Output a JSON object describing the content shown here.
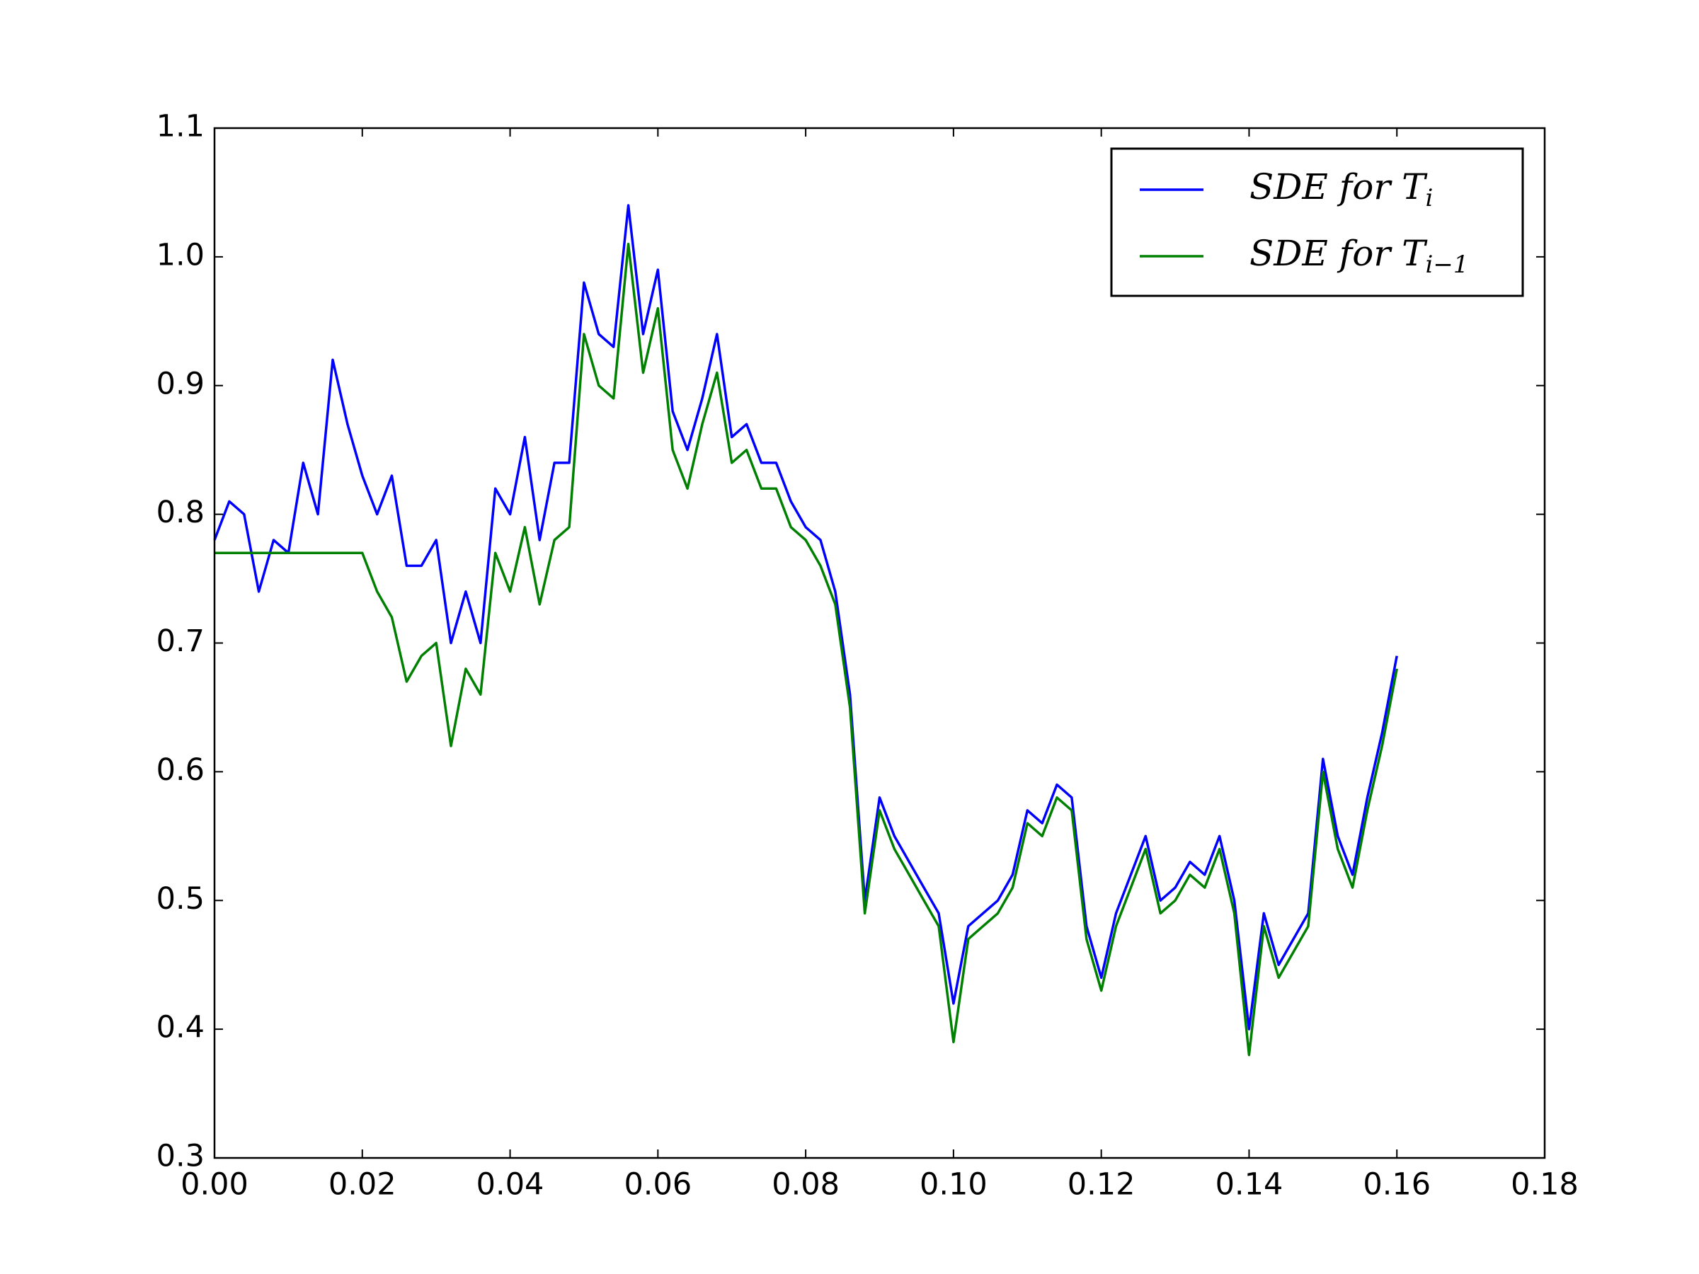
{
  "chart_data": {
    "type": "line",
    "x": [
      0,
      0.002,
      0.004,
      0.006,
      0.008,
      0.01,
      0.012,
      0.014,
      0.016,
      0.018,
      0.02,
      0.022,
      0.024,
      0.026,
      0.028,
      0.03,
      0.032,
      0.034,
      0.036,
      0.038,
      0.04,
      0.042,
      0.044,
      0.046,
      0.048,
      0.05,
      0.052,
      0.054,
      0.056,
      0.058,
      0.06,
      0.062,
      0.064,
      0.066,
      0.068,
      0.07,
      0.072,
      0.074,
      0.076,
      0.078,
      0.08,
      0.082,
      0.084,
      0.086,
      0.088,
      0.09,
      0.092,
      0.094,
      0.096,
      0.098,
      0.1,
      0.102,
      0.104,
      0.106,
      0.108,
      0.11,
      0.112,
      0.114,
      0.116,
      0.118,
      0.12,
      0.122,
      0.124,
      0.126,
      0.128,
      0.13,
      0.132,
      0.134,
      0.136,
      0.138,
      0.14,
      0.142,
      0.144,
      0.146,
      0.148,
      0.15,
      0.152,
      0.154,
      0.156,
      0.158,
      0.16
    ],
    "series": [
      {
        "name": "SDE for T_i",
        "color": "#0000ff",
        "values": [
          0.78,
          0.81,
          0.8,
          0.74,
          0.78,
          0.77,
          0.84,
          0.8,
          0.92,
          0.87,
          0.83,
          0.8,
          0.83,
          0.76,
          0.76,
          0.78,
          0.7,
          0.74,
          0.7,
          0.82,
          0.8,
          0.86,
          0.78,
          0.84,
          0.84,
          0.98,
          0.94,
          0.93,
          1.04,
          0.94,
          0.99,
          0.88,
          0.85,
          0.89,
          0.94,
          0.86,
          0.87,
          0.84,
          0.84,
          0.81,
          0.79,
          0.78,
          0.74,
          0.66,
          0.5,
          0.58,
          0.55,
          0.53,
          0.51,
          0.49,
          0.42,
          0.48,
          0.49,
          0.5,
          0.52,
          0.57,
          0.56,
          0.59,
          0.58,
          0.48,
          0.44,
          0.49,
          0.52,
          0.55,
          0.5,
          0.51,
          0.53,
          0.52,
          0.55,
          0.5,
          0.4,
          0.49,
          0.45,
          0.47,
          0.49,
          0.61,
          0.55,
          0.52,
          0.58,
          0.63,
          0.69
        ]
      },
      {
        "name": "SDE for T_i−1",
        "color": "#008000",
        "values": [
          0.77,
          0.77,
          0.77,
          0.77,
          0.77,
          0.77,
          0.77,
          0.77,
          0.77,
          0.77,
          0.77,
          0.74,
          0.72,
          0.67,
          0.69,
          0.7,
          0.62,
          0.68,
          0.66,
          0.77,
          0.74,
          0.79,
          0.73,
          0.78,
          0.79,
          0.94,
          0.9,
          0.89,
          1.01,
          0.91,
          0.96,
          0.85,
          0.82,
          0.87,
          0.91,
          0.84,
          0.85,
          0.82,
          0.82,
          0.79,
          0.78,
          0.76,
          0.73,
          0.65,
          0.49,
          0.57,
          0.54,
          0.52,
          0.5,
          0.48,
          0.39,
          0.47,
          0.48,
          0.49,
          0.51,
          0.56,
          0.55,
          0.58,
          0.57,
          0.47,
          0.43,
          0.48,
          0.51,
          0.54,
          0.49,
          0.5,
          0.52,
          0.51,
          0.54,
          0.49,
          0.38,
          0.48,
          0.44,
          0.46,
          0.48,
          0.6,
          0.54,
          0.51,
          0.57,
          0.62,
          0.68
        ]
      }
    ],
    "xlim": [
      0,
      0.18
    ],
    "xticks": [
      {
        "value": 0,
        "label": "0.00"
      },
      0.02,
      0.04,
      0.06,
      0.08,
      {
        "value": 0.1,
        "label": "0.10"
      },
      0.12,
      0.14,
      0.16,
      0.18
    ],
    "ylim": [
      0.3,
      1.1
    ],
    "yticks": [
      0.3,
      0.4,
      0.5,
      0.6,
      0.7,
      0.8,
      0.9,
      {
        "value": 1,
        "label": "1.0"
      },
      1.1
    ],
    "grid": false,
    "legend": "upper right"
  }
}
